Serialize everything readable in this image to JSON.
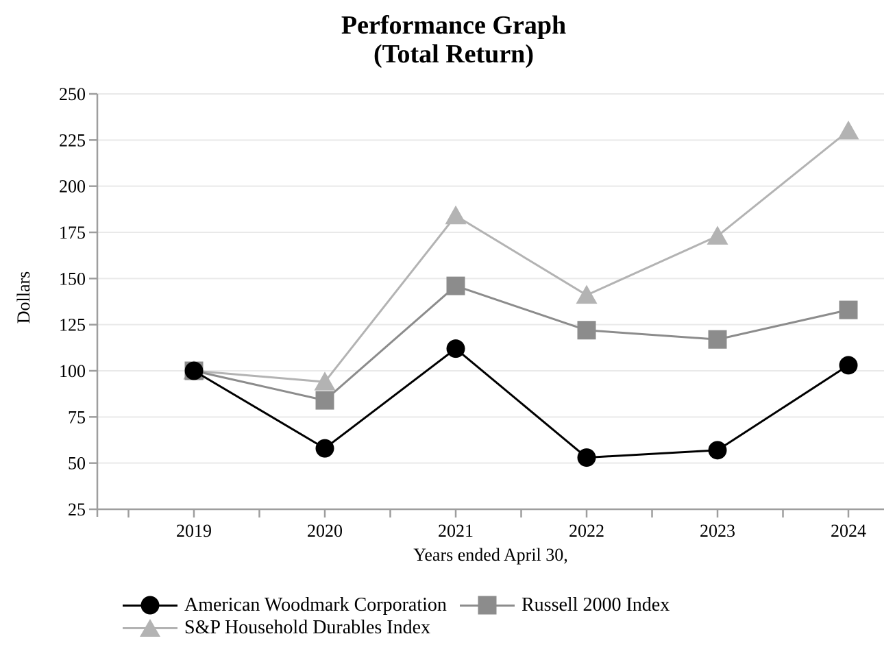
{
  "title": {
    "line1": "Performance Graph",
    "line2": "(Total Return)"
  },
  "chart_data": {
    "type": "line",
    "title": "Performance Graph (Total Return)",
    "xlabel": "Years ended April 30,",
    "ylabel": "Dollars",
    "categories": [
      "2019",
      "2020",
      "2021",
      "2022",
      "2023",
      "2024"
    ],
    "ylim": [
      25,
      250
    ],
    "yticks": [
      25,
      50,
      75,
      100,
      125,
      150,
      175,
      200,
      225,
      250
    ],
    "grid": "horizontal",
    "legend_position": "bottom-left-two-columns",
    "series": [
      {
        "name": "American Woodmark Corporation",
        "marker": "circle",
        "color": "#000000",
        "values": [
          100,
          58,
          112,
          53,
          57,
          103
        ]
      },
      {
        "name": "Russell 2000 Index",
        "marker": "square",
        "color": "#8c8c8c",
        "values": [
          100,
          84,
          146,
          122,
          117,
          133
        ]
      },
      {
        "name": "S&P Household Durables Index",
        "marker": "triangle",
        "color": "#b3b3b3",
        "values": [
          100,
          94,
          184,
          141,
          173,
          230
        ]
      }
    ],
    "axis_color": "#9e9e9e",
    "gridline_color": "#e9e9e9"
  }
}
